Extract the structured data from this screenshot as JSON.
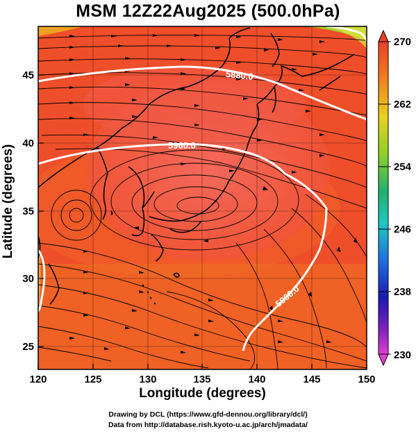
{
  "title": "MSM 12Z22Aug2025 (500.0hPa)",
  "axes": {
    "xlabel": "Longitude (degrees)",
    "ylabel": "Latitude  (degrees)",
    "xlim": [
      120,
      150
    ],
    "ylim": [
      22.4,
      47.6
    ],
    "xticks": [
      "120",
      "125",
      "130",
      "135",
      "140",
      "145",
      "150"
    ],
    "yticks": [
      "25",
      "30",
      "35",
      "40",
      "45"
    ]
  },
  "colorbar": {
    "min": 230,
    "max": 270,
    "labels": [
      "270",
      "262",
      "254",
      "246",
      "238",
      "230"
    ]
  },
  "contours": [
    {
      "label": "5880.0"
    },
    {
      "label": "5960.0"
    },
    {
      "label": "5960.0"
    }
  ],
  "credits": {
    "line1": "Drawing by DCL (https://www.gfd-dennou.org/library/dcl/)",
    "line2": "Data from http://database.rish.kyoto-u.ac.jp/arch/jmadata/"
  },
  "colors": {
    "field_warm": "#f0502a",
    "field_high": "#f46a5a",
    "field_south": "#f17a1e",
    "coast": "#000000",
    "contour": "#ffffff"
  }
}
